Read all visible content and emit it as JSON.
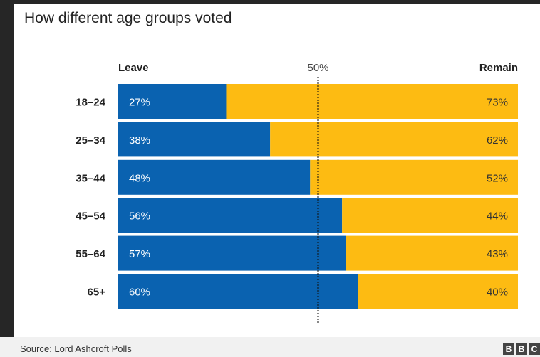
{
  "title": "How different age groups voted",
  "source": "Source: Lord Ashcroft Polls",
  "logo": [
    "B",
    "B",
    "C"
  ],
  "colors": {
    "leave": "#0a62b0",
    "remain": "#fdbb12",
    "text_on_bar": "#ffffff",
    "text_remain": "#333333"
  },
  "chart_data": {
    "type": "bar",
    "orientation": "horizontal-stacked-100",
    "categories": [
      "18–24",
      "25–34",
      "35–44",
      "45–54",
      "55–64",
      "65+"
    ],
    "series": [
      {
        "name": "Leave",
        "values": [
          27,
          38,
          48,
          56,
          57,
          60
        ],
        "labels": [
          "27%",
          "38%",
          "48%",
          "56%",
          "57%",
          "60%"
        ]
      },
      {
        "name": "Remain",
        "values": [
          73,
          62,
          52,
          44,
          43,
          40
        ],
        "labels": [
          "73%",
          "62%",
          "52%",
          "44%",
          "43%",
          "40%"
        ]
      }
    ],
    "reference_line": {
      "value": 50,
      "label": "50%"
    },
    "xlim": [
      0,
      100
    ]
  }
}
